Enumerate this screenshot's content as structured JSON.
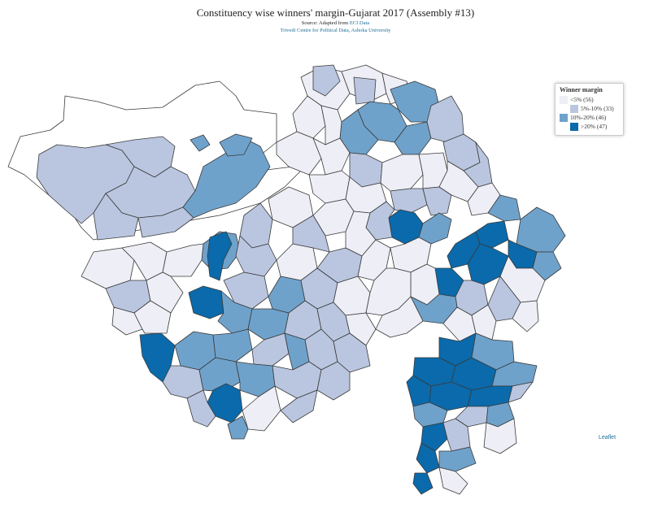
{
  "header": {
    "title": "Constituency wise winners' margin-Gujarat 2017 (Assembly #13)",
    "source_prefix": "Source: Adapted from ",
    "source_link": "ECI Data",
    "credit": "Trivedi Centre for Political Data, Ashoka University"
  },
  "legend": {
    "title": "Winner margin",
    "items": [
      {
        "label": "<5% (56)",
        "color": "#eeeef6"
      },
      {
        "label": "5%-10% (33)",
        "color": "#bac6e0"
      },
      {
        "label": "10%-20% (46)",
        "color": "#6fa2cb"
      },
      {
        "label": ">20% (47)",
        "color": "#0a6aab"
      }
    ]
  },
  "attribution": "Leaflet",
  "colors": {
    "lt5": "#eeeef6",
    "5to10": "#bac6e0",
    "10to20": "#6fa2cb",
    "gt20": "#0a6aab",
    "border": "#444444"
  }
}
